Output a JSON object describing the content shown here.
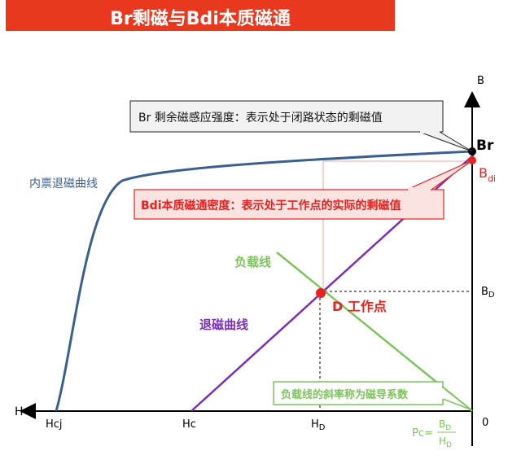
{
  "banner": {
    "title": "Br剩磁与Bdi本质磁通"
  },
  "callouts": {
    "br_note": "Br 剩余磁感应强度：表示处于闭路状态的剩磁值",
    "bdi_note": "Bdi本质磁通密度：表示处于工作点的实际的剩磁值",
    "slope_note": "负载线的斜率称为磁导系数"
  },
  "curve_labels": {
    "intrinsic": "内禀退磁曲线",
    "load_line": "负载线",
    "demag": "退磁曲线",
    "work_point": "D 工作点"
  },
  "axis_labels": {
    "B": "B",
    "H": "H",
    "Br": "Br",
    "Bdi_main": "B",
    "Bdi_sub": "di",
    "BD_main": "B",
    "BD_sub": "D",
    "Hcj": "Hcj",
    "Hc": "Hc",
    "HD_main": "H",
    "HD_sub": "D",
    "origin": "0"
  },
  "formula": {
    "lhs": "Pc=",
    "num_main": "B",
    "num_sub": "D",
    "den_main": "H",
    "den_sub": "D"
  },
  "colors": {
    "banner": "#e8391e",
    "intrinsic_curve": "#3b5f8f",
    "demag_curve": "#7b2fb5",
    "load_line": "#7cc45b",
    "point": "#e8201e",
    "guide_red": "#f4a6a0",
    "bdi_box_fill": "#fbe3e1",
    "bdi_box_border": "#e8201e"
  }
}
